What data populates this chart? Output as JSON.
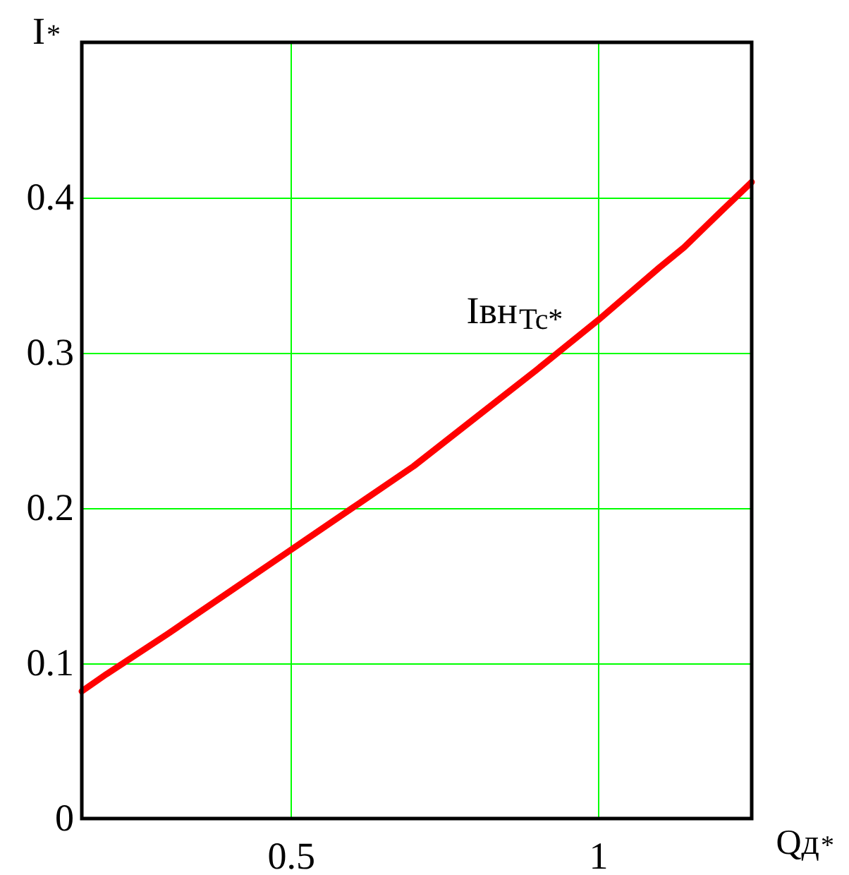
{
  "chart_data": {
    "type": "line",
    "xlabel": "Qд$_{*}$",
    "ylabel": "I$_{*}$",
    "x": [
      0.16,
      0.2,
      0.3,
      0.4,
      0.5,
      0.6,
      0.7,
      0.8,
      0.9,
      1.0,
      1.1,
      1.14,
      1.2,
      1.25
    ],
    "series": [
      {
        "name": "Iвн$_{Tc*}$",
        "color": "#ff0000",
        "values": [
          0.082,
          0.093,
          0.119,
          0.146,
          0.173,
          0.2,
          0.227,
          0.258,
          0.289,
          0.321,
          0.355,
          0.368,
          0.391,
          0.41
        ]
      }
    ],
    "xlim": [
      0.16,
      1.25
    ],
    "ylim": [
      0,
      0.5
    ],
    "xticks": [
      0.5,
      1
    ],
    "yticks": [
      0,
      0.1,
      0.2,
      0.3,
      0.4
    ],
    "grid": true,
    "line_style": "solid"
  }
}
